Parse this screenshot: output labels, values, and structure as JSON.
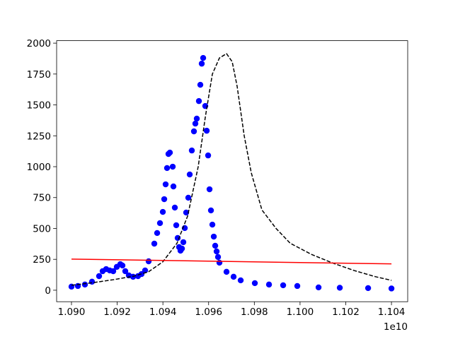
{
  "chart_data": {
    "type": "scatter",
    "x_offset_label": "1e10",
    "xlim": [
      10893500000,
      11047100000
    ],
    "ylim": [
      -93,
      2020
    ],
    "xticks": [
      {
        "value": 10900000000,
        "label": "1.090"
      },
      {
        "value": 10920000000,
        "label": "1.092"
      },
      {
        "value": 10940000000,
        "label": "1.094"
      },
      {
        "value": 10960000000,
        "label": "1.096"
      },
      {
        "value": 10980000000,
        "label": "1.098"
      },
      {
        "value": 11000000000,
        "label": "1.100"
      },
      {
        "value": 11020000000,
        "label": "1.102"
      },
      {
        "value": 11040000000,
        "label": "1.104"
      }
    ],
    "yticks": [
      0,
      250,
      500,
      750,
      1000,
      1250,
      1500,
      1750,
      2000
    ],
    "grid": false,
    "series": [
      {
        "color": "#0000ff",
        "marker": "circle",
        "x": [
          10900000000,
          10902790000,
          10905880000,
          10908980000,
          10912080000,
          10913630000,
          10915180000,
          10916730000,
          10918270000,
          10919820000,
          10921370000,
          10922300000,
          10923540000,
          10925090000,
          10926950000,
          10929110000,
          10930660000,
          10932210000,
          10933760000,
          10936240000,
          10937480000,
          10938720000,
          10939960000,
          10940580000,
          10941190000,
          10941810000,
          10942430000,
          10943050000,
          10944290000,
          10944600000,
          10945220000,
          10945840000,
          10946460000,
          10947080000,
          10947700000,
          10948320000,
          10948940000,
          10949560000,
          10950180000,
          10951110000,
          10951730000,
          10952650000,
          10953580000,
          10954200000,
          10954820000,
          10955750000,
          10956370000,
          10956990000,
          10957610000,
          10958540000,
          10959160000,
          10959780000,
          10960400000,
          10961020000,
          10961640000,
          10962260000,
          10962880000,
          10963500000,
          10964110000,
          10964730000,
          10967830000,
          10970930000,
          10974030000,
          10980220000,
          10986420000,
          10992610000,
          10998800000,
          11008100000,
          11017390000,
          11029780000,
          11040000000
        ],
        "values": [
          29,
          34,
          46,
          69,
          114,
          154,
          171,
          160,
          154,
          189,
          211,
          200,
          154,
          120,
          109,
          114,
          131,
          160,
          234,
          377,
          463,
          543,
          634,
          737,
          857,
          989,
          1103,
          1114,
          1000,
          840,
          669,
          526,
          423,
          349,
          320,
          337,
          389,
          503,
          629,
          749,
          937,
          1131,
          1286,
          1349,
          1389,
          1531,
          1663,
          1834,
          1880,
          1491,
          1291,
          1091,
          817,
          646,
          531,
          434,
          360,
          314,
          269,
          223,
          149,
          109,
          80,
          57,
          46,
          40,
          34,
          23,
          20,
          17,
          14
        ]
      },
      {
        "color": "#000000",
        "style": "dashed",
        "x": [
          10900000000,
          10908980000,
          10918270000,
          10927570000,
          10933760000,
          10939960000,
          10946150000,
          10950800000,
          10955440000,
          10958540000,
          10961640000,
          10964730000,
          10967830000,
          10970310000,
          10972480000,
          10975570000,
          10978670000,
          10983320000,
          10989510000,
          10995710000,
          11005000000,
          11014290000,
          11023580000,
          11032880000,
          11040000000
        ],
        "values": [
          40,
          60,
          85,
          115,
          150,
          230,
          380,
          600,
          1000,
          1400,
          1750,
          1880,
          1915,
          1850,
          1650,
          1250,
          950,
          650,
          500,
          380,
          290,
          220,
          160,
          110,
          80
        ]
      },
      {
        "color": "#ff0000",
        "style": "solid",
        "x": [
          10900000000,
          11040000000
        ],
        "values": [
          252,
          213
        ]
      }
    ]
  }
}
